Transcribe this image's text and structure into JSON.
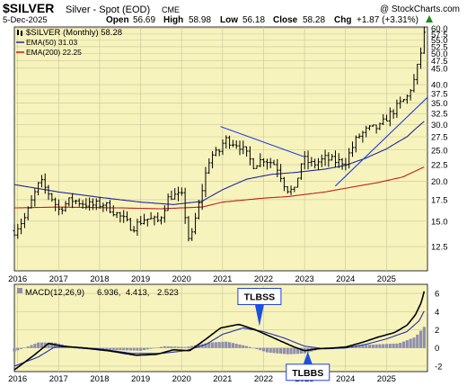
{
  "header": {
    "symbol": "$SILVER",
    "name": "Silver - Spot (EOD)",
    "exchange": "CME",
    "watermark": "@ StockCharts.com",
    "date": "5-Dec-2025",
    "open_label": "Open",
    "open": "56.69",
    "high_label": "High",
    "high": "58.98",
    "low_label": "Low",
    "low": "56.18",
    "close_label": "Close",
    "close": "58.28",
    "chg_label": "Chg",
    "chg": "+1.87 (+3.31%)",
    "chg_arrow": "up-arrow-icon"
  },
  "colors": {
    "panel_bg": "#f7f3bc",
    "price": "#000000",
    "ema50": "#1f2a9a",
    "ema200": "#c02020",
    "trendline": "#2040e0",
    "macd_line": "#000000",
    "signal_line": "#2030b0",
    "histogram": "#8f8fb0"
  },
  "chart_data": [
    {
      "type": "ohlc",
      "legend": [
        {
          "label": "$SILVER (Monthly) 58.28",
          "color": "#000000"
        },
        {
          "label": "EMA(50) 31.03",
          "color": "#1f2a9a"
        },
        {
          "label": "EMA(200) 22.25",
          "color": "#c02020"
        }
      ],
      "y_scale": "log",
      "ylim": [
        10.5,
        60.5
      ],
      "y_ticks": [
        12.5,
        15,
        17.5,
        20,
        22.5,
        25,
        27.5,
        30,
        32.5,
        35,
        37.5,
        40,
        45,
        47.5,
        50,
        52.5,
        55,
        57.5,
        60
      ],
      "y_tick_labels": [
        "12.5",
        "15.0",
        "17.5",
        "20.0",
        "22.5",
        "25.0",
        "27.5",
        "30.0",
        "32.5",
        "35.0",
        "37.5",
        "40.0",
        "45.0",
        "47.5",
        "50.0",
        "52.5",
        "55.0",
        "57.5",
        "60.0"
      ],
      "x_ticks": [
        "2016",
        "2017",
        "2018",
        "2019",
        "2020",
        "2021",
        "2022",
        "2023",
        "2024",
        "2025"
      ],
      "x_range": [
        2015.92,
        2026.0
      ],
      "price_anchors": [
        [
          2015.92,
          14.0
        ],
        [
          2016.2,
          15.5
        ],
        [
          2016.55,
          20.0
        ],
        [
          2016.8,
          18.0
        ],
        [
          2017.0,
          16.3
        ],
        [
          2017.3,
          17.5
        ],
        [
          2017.8,
          16.8
        ],
        [
          2018.1,
          17.0
        ],
        [
          2018.5,
          15.5
        ],
        [
          2018.8,
          14.3
        ],
        [
          2019.1,
          15.3
        ],
        [
          2019.45,
          15.0
        ],
        [
          2019.7,
          18.0
        ],
        [
          2020.0,
          18.0
        ],
        [
          2020.2,
          12.5
        ],
        [
          2020.45,
          17.5
        ],
        [
          2020.7,
          24.0
        ],
        [
          2020.9,
          24.5
        ],
        [
          2021.05,
          27.0
        ],
        [
          2021.4,
          26.0
        ],
        [
          2021.75,
          22.5
        ],
        [
          2022.0,
          23.5
        ],
        [
          2022.3,
          22.5
        ],
        [
          2022.55,
          19.0
        ],
        [
          2022.75,
          18.5
        ],
        [
          2022.95,
          23.5
        ],
        [
          2023.2,
          22.5
        ],
        [
          2023.5,
          23.5
        ],
        [
          2023.8,
          23.0
        ],
        [
          2024.0,
          23.0
        ],
        [
          2024.3,
          27.5
        ],
        [
          2024.55,
          29.0
        ],
        [
          2024.85,
          29.5
        ],
        [
          2025.0,
          31.5
        ],
        [
          2025.2,
          33.5
        ],
        [
          2025.5,
          36.5
        ],
        [
          2025.7,
          42.0
        ],
        [
          2025.8,
          48.0
        ],
        [
          2025.92,
          56.0
        ],
        [
          2025.96,
          58.28
        ]
      ],
      "ema50_anchors": [
        [
          2015.92,
          19.5
        ],
        [
          2017.0,
          18.5
        ],
        [
          2018.0,
          17.8
        ],
        [
          2019.0,
          17.2
        ],
        [
          2019.8,
          16.9
        ],
        [
          2020.5,
          17.3
        ],
        [
          2021.0,
          18.8
        ],
        [
          2021.6,
          20.3
        ],
        [
          2022.2,
          21.0
        ],
        [
          2022.8,
          21.3
        ],
        [
          2023.5,
          21.8
        ],
        [
          2024.0,
          22.4
        ],
        [
          2024.5,
          23.6
        ],
        [
          2025.0,
          25.2
        ],
        [
          2025.5,
          27.5
        ],
        [
          2025.96,
          31.03
        ]
      ],
      "ema200_anchors": [
        [
          2015.92,
          16.5
        ],
        [
          2017.0,
          16.6
        ],
        [
          2018.5,
          16.5
        ],
        [
          2019.5,
          16.4
        ],
        [
          2020.5,
          16.6
        ],
        [
          2021.0,
          17.2
        ],
        [
          2022.0,
          17.7
        ],
        [
          2022.6,
          17.9
        ],
        [
          2023.5,
          18.5
        ],
        [
          2024.3,
          19.3
        ],
        [
          2024.8,
          19.8
        ],
        [
          2025.4,
          20.6
        ],
        [
          2025.96,
          22.25
        ]
      ],
      "trendlines": [
        {
          "from": [
            2020.95,
            29.6
          ],
          "to": [
            2023.0,
            23.8
          ]
        },
        {
          "from": [
            2023.75,
            19.3
          ],
          "to": [
            2026.0,
            36.5
          ]
        }
      ]
    },
    {
      "type": "macd",
      "legend": [
        {
          "label": "MACD(12,26,9)",
          "color": "#000000"
        },
        {
          "label": "6.936,",
          "color": "#000000"
        },
        {
          "label": "4.413,",
          "color": "#2030b0"
        },
        {
          "label": "2.523",
          "color": "#8f8fb0"
        }
      ],
      "ylim": [
        -2.6,
        7.0
      ],
      "y_ticks": [
        -2,
        0,
        2,
        4,
        6
      ],
      "x_ticks": [
        "2016",
        "2017",
        "2018",
        "2019",
        "2020",
        "2021",
        "2022",
        "2023",
        "2024",
        "2025"
      ],
      "x_range": [
        2015.92,
        2026.0
      ],
      "macd_anchors": [
        [
          2015.92,
          -2.4
        ],
        [
          2016.4,
          -0.8
        ],
        [
          2016.75,
          0.5
        ],
        [
          2017.1,
          0.2
        ],
        [
          2017.6,
          0.0
        ],
        [
          2018.2,
          -0.3
        ],
        [
          2018.9,
          -0.8
        ],
        [
          2019.4,
          -0.7
        ],
        [
          2019.8,
          -0.2
        ],
        [
          2020.2,
          -0.3
        ],
        [
          2020.6,
          1.0
        ],
        [
          2020.95,
          2.2
        ],
        [
          2021.4,
          2.6
        ],
        [
          2021.8,
          2.0
        ],
        [
          2022.3,
          1.0
        ],
        [
          2022.75,
          0.1
        ],
        [
          2023.0,
          -0.3
        ],
        [
          2023.3,
          -0.1
        ],
        [
          2023.7,
          0.0
        ],
        [
          2024.0,
          0.1
        ],
        [
          2024.4,
          0.6
        ],
        [
          2024.8,
          1.2
        ],
        [
          2025.2,
          1.7
        ],
        [
          2025.5,
          2.5
        ],
        [
          2025.7,
          3.6
        ],
        [
          2025.85,
          5.0
        ],
        [
          2025.96,
          6.936
        ]
      ],
      "signal_anchors": [
        [
          2015.92,
          -2.0
        ],
        [
          2016.5,
          -1.0
        ],
        [
          2016.9,
          0.1
        ],
        [
          2017.4,
          0.1
        ],
        [
          2018.0,
          -0.1
        ],
        [
          2018.8,
          -0.6
        ],
        [
          2019.5,
          -0.6
        ],
        [
          2020.1,
          -0.3
        ],
        [
          2020.6,
          0.4
        ],
        [
          2021.0,
          1.5
        ],
        [
          2021.5,
          2.2
        ],
        [
          2022.0,
          1.8
        ],
        [
          2022.5,
          1.1
        ],
        [
          2023.0,
          0.2
        ],
        [
          2023.5,
          -0.1
        ],
        [
          2024.0,
          0.0
        ],
        [
          2024.5,
          0.4
        ],
        [
          2025.0,
          1.0
        ],
        [
          2025.5,
          1.8
        ],
        [
          2025.8,
          3.0
        ],
        [
          2025.96,
          4.413
        ]
      ],
      "histogram_anchors": [
        [
          2015.92,
          -0.4
        ],
        [
          2016.5,
          0.6
        ],
        [
          2016.9,
          0.6
        ],
        [
          2017.5,
          -0.1
        ],
        [
          2018.2,
          -0.2
        ],
        [
          2019.0,
          -0.3
        ],
        [
          2019.6,
          0.2
        ],
        [
          2020.1,
          0.1
        ],
        [
          2020.7,
          0.6
        ],
        [
          2021.1,
          0.7
        ],
        [
          2021.6,
          0.2
        ],
        [
          2022.1,
          -0.5
        ],
        [
          2022.6,
          -0.7
        ],
        [
          2023.0,
          -0.6
        ],
        [
          2023.4,
          -0.1
        ],
        [
          2023.8,
          0.1
        ],
        [
          2024.3,
          0.3
        ],
        [
          2024.8,
          0.4
        ],
        [
          2025.3,
          0.5
        ],
        [
          2025.7,
          1.2
        ],
        [
          2025.96,
          2.523
        ]
      ],
      "annotations": [
        {
          "text": "TLBSS",
          "at": [
            2021.9,
            2.4
          ],
          "arrow": "down-arrow-icon"
        },
        {
          "text": "TLBBS",
          "at": [
            2023.08,
            -0.4
          ],
          "arrow": "up-arrow-icon"
        }
      ]
    }
  ]
}
